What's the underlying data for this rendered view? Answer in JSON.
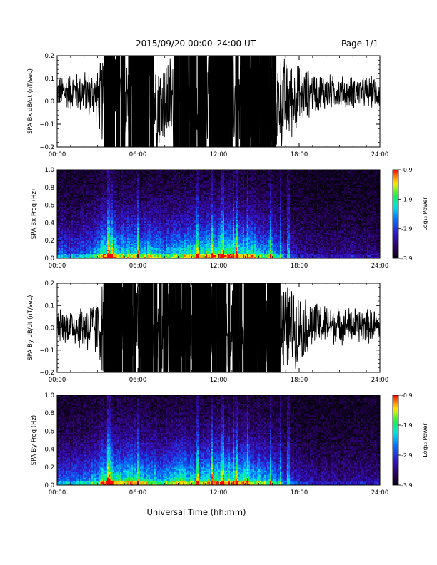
{
  "header": {
    "title": "2015/09/20  00:00–24:00 UT",
    "page": "Page 1/1"
  },
  "xaxis_label": "Universal Time (hh:mm)",
  "colorbar": {
    "label": "Log₁₀ Power",
    "ticks": [
      "-0.9",
      "-1.9",
      "-2.9",
      "-3.9"
    ]
  },
  "chart_data": [
    {
      "type": "line",
      "title": "",
      "ylabel": "SPA Bx dB/dt (nT/sec)",
      "xlabel": "",
      "x_ticks": [
        "00:00",
        "06:00",
        "12:00",
        "18:00",
        "24:00"
      ],
      "y_ticks": [
        "0.2",
        "0.1",
        "0.0",
        "−0.1",
        "−0.2"
      ],
      "ylim": [
        -0.2,
        0.2
      ],
      "series": [
        {
          "x_hours": [
            0,
            1,
            2,
            3,
            3.5,
            4,
            5,
            6,
            7,
            8,
            9,
            10,
            11,
            12,
            13,
            14,
            15,
            16,
            17,
            18,
            19,
            20,
            21,
            22,
            23,
            24
          ],
          "amplitude": [
            0.06,
            0.07,
            0.08,
            0.1,
            0.2,
            0.2,
            0.2,
            0.2,
            0.2,
            0.17,
            0.2,
            0.2,
            0.2,
            0.2,
            0.2,
            0.2,
            0.2,
            0.2,
            0.16,
            0.12,
            0.08,
            0.07,
            0.06,
            0.06,
            0.06,
            0.06
          ],
          "offset": [
            0.04,
            0.04,
            0.04,
            0.02,
            0.0,
            0.0,
            0.0,
            0.0,
            0.0,
            0.0,
            0.0,
            0.0,
            0.0,
            0.0,
            0.0,
            0.0,
            0.0,
            0.0,
            0.0,
            0.02,
            0.04,
            0.04,
            0.04,
            0.04,
            0.04,
            0.04
          ]
        }
      ]
    },
    {
      "type": "heatmap",
      "title": "",
      "ylabel": "SPA Bx Freq (Hz)",
      "xlabel": "",
      "x_ticks": [
        "00:00",
        "06:00",
        "12:00",
        "18:00",
        "24:00"
      ],
      "y_ticks": [
        "1.0",
        "0.8",
        "0.6",
        "0.4",
        "0.2",
        "0.0"
      ],
      "ylim": [
        0,
        1.0
      ],
      "zlim": [
        -3.9,
        -0.9
      ],
      "activity_hours": [
        0,
        1,
        2,
        3,
        3.5,
        4,
        5,
        6,
        7,
        8,
        9,
        10,
        11,
        12,
        13,
        14,
        15,
        16,
        17,
        18,
        19,
        20,
        21,
        22,
        23,
        24
      ],
      "activity": [
        0.45,
        0.4,
        0.45,
        0.55,
        0.85,
        0.8,
        0.65,
        0.7,
        0.65,
        0.55,
        0.7,
        0.65,
        0.7,
        0.75,
        0.8,
        0.75,
        0.65,
        0.6,
        0.35,
        0.25,
        0.22,
        0.2,
        0.2,
        0.22,
        0.2,
        0.2
      ],
      "bright_lines_hours": [
        3.8,
        4.1,
        6.0,
        10.4,
        11.5,
        12.3,
        13.1,
        13.4,
        14.2,
        15.9,
        16.6,
        17.2
      ]
    },
    {
      "type": "line",
      "title": "",
      "ylabel": "SPA By dB/dt (nT/sec)",
      "xlabel": "",
      "x_ticks": [
        "00:00",
        "06:00",
        "12:00",
        "18:00",
        "24:00"
      ],
      "y_ticks": [
        "0.2",
        "0.1",
        "0.0",
        "−0.1",
        "−0.2"
      ],
      "ylim": [
        -0.2,
        0.2
      ],
      "series": [
        {
          "x_hours": [
            0,
            1,
            2,
            3,
            3.5,
            4,
            5,
            6,
            7,
            8,
            9,
            10,
            11,
            12,
            13,
            14,
            15,
            16,
            17,
            18,
            19,
            20,
            21,
            22,
            23,
            24
          ],
          "amplitude": [
            0.06,
            0.07,
            0.09,
            0.12,
            0.2,
            0.2,
            0.2,
            0.2,
            0.2,
            0.2,
            0.2,
            0.2,
            0.2,
            0.2,
            0.2,
            0.2,
            0.2,
            0.2,
            0.18,
            0.13,
            0.09,
            0.08,
            0.07,
            0.07,
            0.07,
            0.06
          ],
          "offset": [
            0.01,
            0.01,
            0.0,
            0.0,
            0.0,
            0.0,
            0.0,
            0.0,
            0.0,
            0.0,
            0.0,
            0.0,
            0.0,
            0.0,
            0.0,
            0.0,
            0.0,
            0.0,
            0.0,
            0.0,
            0.01,
            0.01,
            0.01,
            0.01,
            0.01,
            0.01
          ]
        }
      ]
    },
    {
      "type": "heatmap",
      "title": "",
      "ylabel": "SPA By Freq (Hz)",
      "xlabel": "",
      "x_ticks": [
        "00:00",
        "06:00",
        "12:00",
        "18:00",
        "24:00"
      ],
      "y_ticks": [
        "1.0",
        "0.8",
        "0.6",
        "0.4",
        "0.2",
        "0.0"
      ],
      "ylim": [
        0,
        1.0
      ],
      "zlim": [
        -3.9,
        -0.9
      ],
      "activity_hours": [
        0,
        1,
        2,
        3,
        3.5,
        4,
        5,
        6,
        7,
        8,
        9,
        10,
        11,
        12,
        13,
        14,
        15,
        16,
        17,
        18,
        19,
        20,
        21,
        22,
        23,
        24
      ],
      "activity": [
        0.5,
        0.45,
        0.5,
        0.6,
        0.85,
        0.8,
        0.7,
        0.7,
        0.65,
        0.6,
        0.7,
        0.65,
        0.7,
        0.75,
        0.8,
        0.75,
        0.65,
        0.6,
        0.4,
        0.3,
        0.25,
        0.22,
        0.22,
        0.24,
        0.22,
        0.22
      ],
      "bright_lines_hours": [
        3.8,
        4.0,
        6.0,
        10.4,
        11.5,
        12.3,
        13.1,
        13.4,
        14.2,
        15.9,
        16.6,
        17.2
      ]
    }
  ]
}
